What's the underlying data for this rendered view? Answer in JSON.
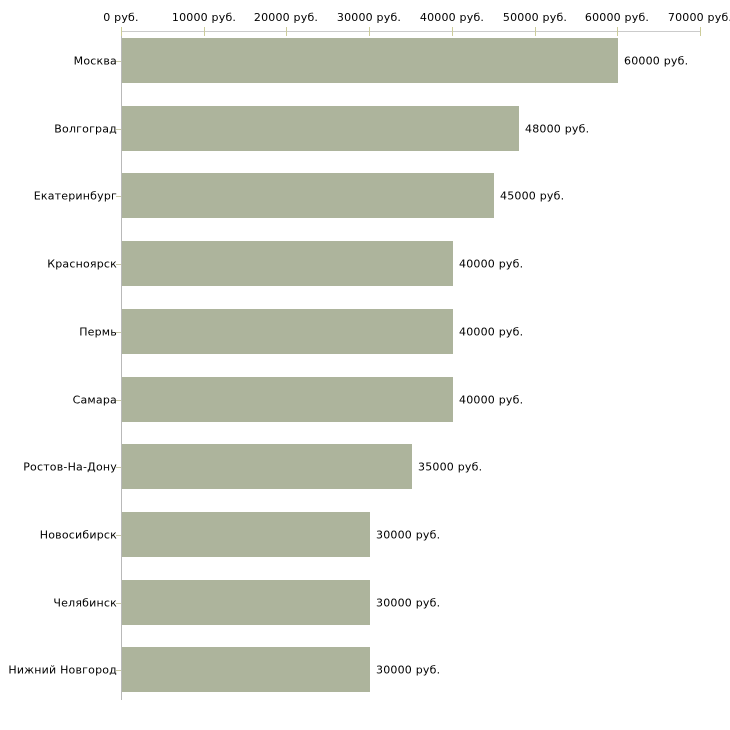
{
  "chart_data": {
    "type": "bar",
    "orientation": "horizontal",
    "title": "",
    "xlabel": "",
    "ylabel": "",
    "unit": "руб.",
    "categories": [
      "Москва",
      "Волгоград",
      "Екатеринбург",
      "Красноярск",
      "Пермь",
      "Самара",
      "Ростов-На-Дону",
      "Новосибирск",
      "Челябинск",
      "Нижний Новгород"
    ],
    "values": [
      60000,
      48000,
      45000,
      40000,
      40000,
      40000,
      35000,
      30000,
      30000,
      30000
    ],
    "value_labels": [
      "60000 руб.",
      "48000 руб.",
      "45000 руб.",
      "40000 руб.",
      "40000 руб.",
      "40000 руб.",
      "35000 руб.",
      "30000 руб.",
      "30000 руб.",
      "30000 руб."
    ],
    "x_ticks": [
      0,
      10000,
      20000,
      30000,
      40000,
      50000,
      60000,
      70000
    ],
    "x_tick_labels": [
      "0 руб.",
      "10000 руб.",
      "20000 руб.",
      "30000 руб.",
      "40000 руб.",
      "50000 руб.",
      "60000 руб.",
      "70000 руб."
    ],
    "xlim": [
      0,
      70000
    ],
    "grid": "off",
    "legend": "none",
    "colors": {
      "bar": "#adb49c",
      "x_axis": "#cbcbcb",
      "y_axis": "#b9b9b9",
      "tick": "#cccc99",
      "text": "#000000",
      "background": "#ffffff"
    }
  }
}
